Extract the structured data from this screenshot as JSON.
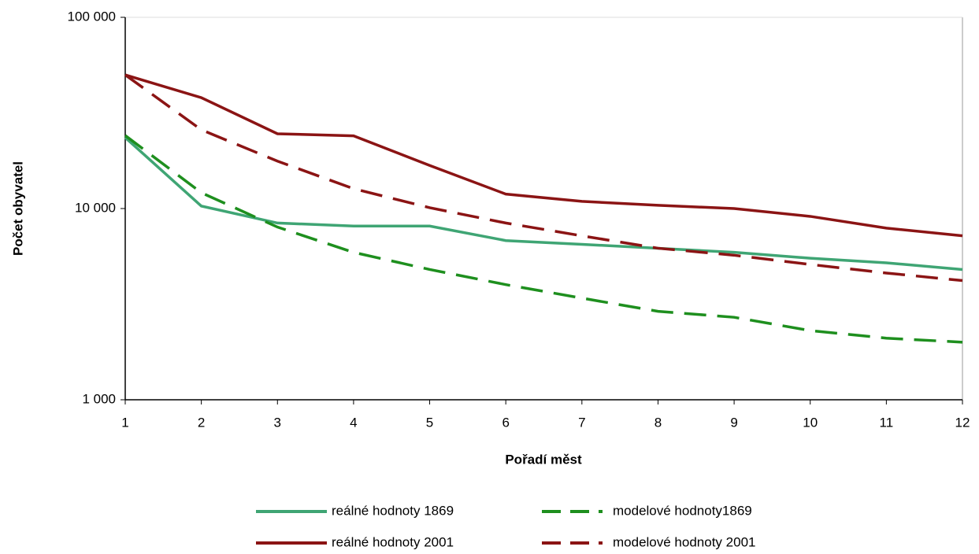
{
  "chart_data": {
    "type": "line",
    "x_label": "Pořadí měst",
    "y_label": "Počet obyvatel",
    "x": [
      1,
      2,
      3,
      4,
      5,
      6,
      7,
      8,
      9,
      10,
      11,
      12
    ],
    "xlim": [
      1,
      12
    ],
    "xticks": [
      1,
      2,
      3,
      4,
      5,
      6,
      7,
      8,
      9,
      10,
      11,
      12
    ],
    "ylim": [
      1000,
      100000
    ],
    "yticks": [
      {
        "value": 1000,
        "label": "1 000"
      },
      {
        "value": 10000,
        "label": "10 000"
      },
      {
        "value": 100000,
        "label": "100 000"
      }
    ],
    "log_y": true,
    "series": [
      {
        "name": "reálné hodnoty 1869",
        "color": "#3fa574",
        "style": "solid",
        "values": [
          23500,
          10300,
          8400,
          8100,
          8100,
          6800,
          6500,
          6200,
          5900,
          5500,
          5200,
          4800
        ]
      },
      {
        "name": "modelové hodnoty1869",
        "color": "#1e8f1e",
        "style": "dashed",
        "values": [
          24100,
          12100,
          8000,
          5900,
          4800,
          4000,
          3400,
          2900,
          2700,
          2300,
          2100,
          2000
        ]
      },
      {
        "name": "reálné hodnoty 2001",
        "color": "#8b1414",
        "style": "solid",
        "values": [
          50000,
          38000,
          24600,
          24000,
          16800,
          11900,
          10900,
          10400,
          10000,
          9100,
          7900,
          7200
        ]
      },
      {
        "name": "modelové hodnoty 2001",
        "color": "#8b1414",
        "style": "dashed",
        "values": [
          50000,
          25800,
          17700,
          12700,
          10100,
          8400,
          7200,
          6200,
          5700,
          5100,
          4600,
          4200
        ]
      }
    ]
  }
}
